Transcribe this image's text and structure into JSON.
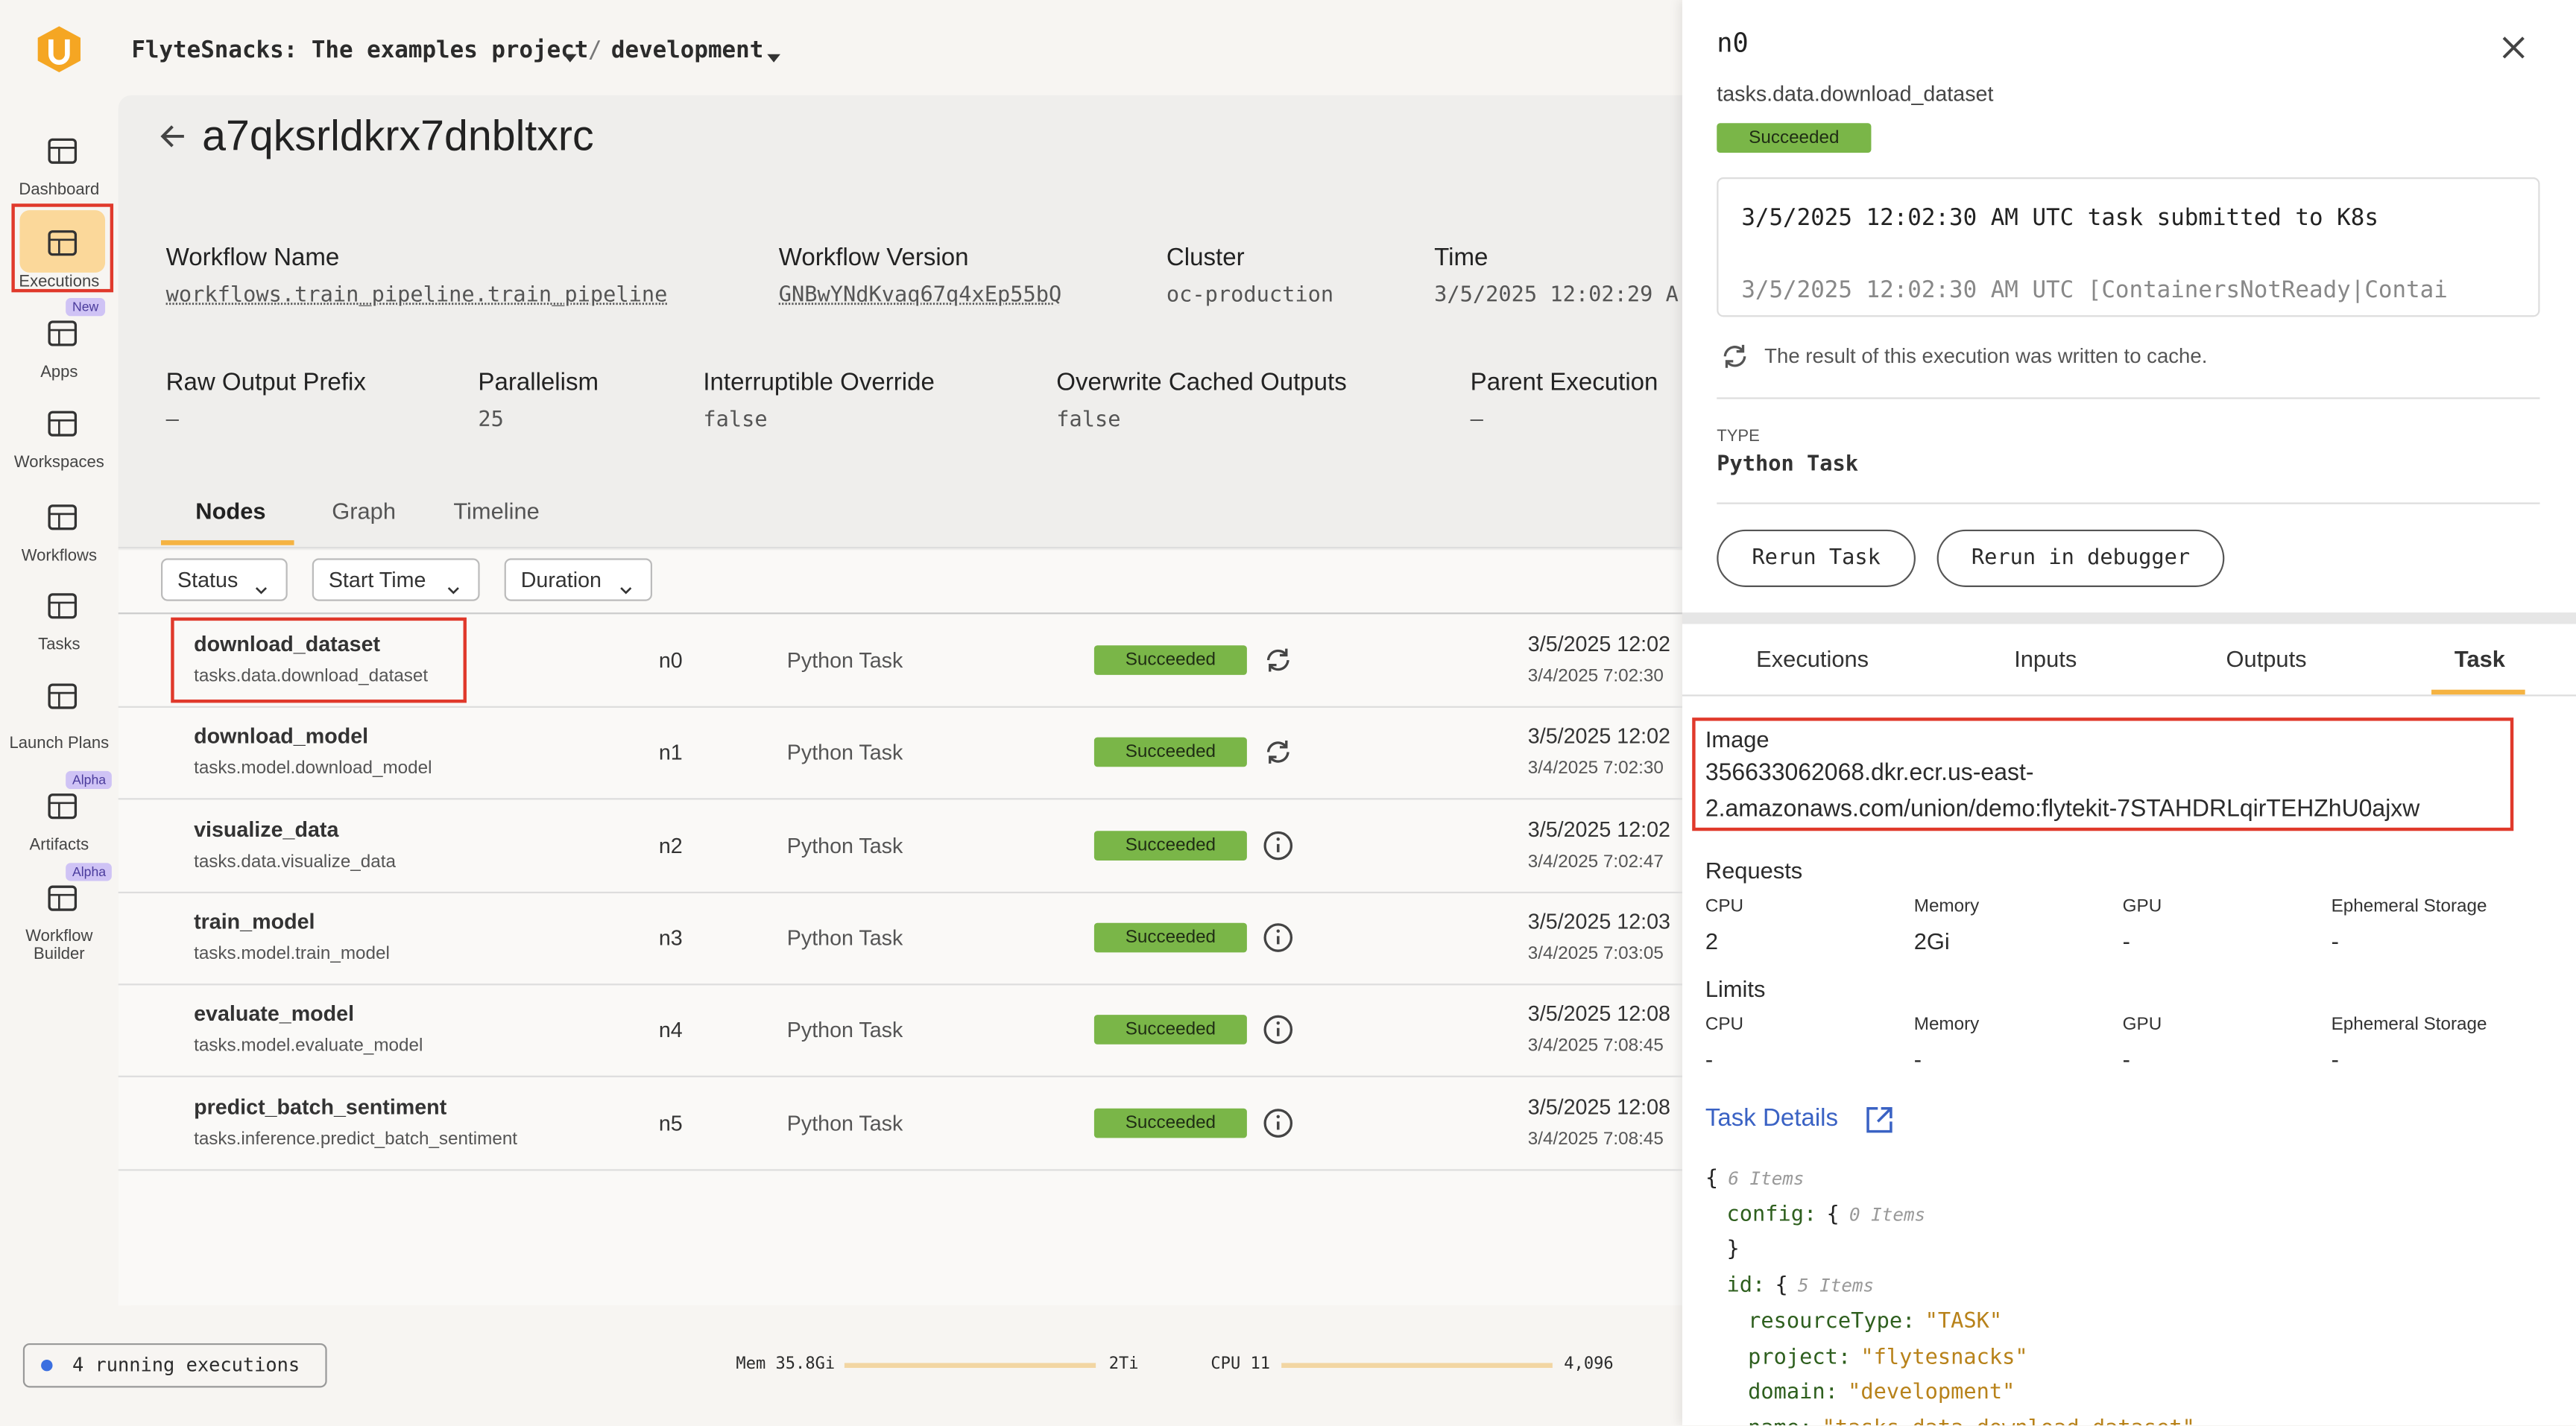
{
  "header": {
    "project": "FlyteSnacks: The examples project",
    "separator": "/",
    "domain": "development"
  },
  "sidebar": [
    {
      "label": "Dashboard"
    },
    {
      "label": "Executions"
    },
    {
      "label": "Apps",
      "badge": "New"
    },
    {
      "label": "Workspaces"
    },
    {
      "label": "Workflows"
    },
    {
      "label": "Tasks"
    },
    {
      "label": "Launch Plans"
    },
    {
      "label": "Artifacts",
      "badge": "Alpha"
    },
    {
      "label": "Workflow Builder",
      "badge": "Alpha"
    }
  ],
  "execution": {
    "id": "a7qksrldkrx7dnbltxrc",
    "fields": [
      {
        "label": "Workflow Name",
        "value": "workflows.train_pipeline.train_pipeline"
      },
      {
        "label": "Workflow Version",
        "value": "GNBwYNdKvaq67q4xEp55bQ"
      },
      {
        "label": "Cluster",
        "value": "oc-production"
      },
      {
        "label": "Time",
        "value": "3/5/2025 12:02:29 A"
      },
      {
        "label": "Raw Output Prefix",
        "value": "–"
      },
      {
        "label": "Parallelism",
        "value": "25"
      },
      {
        "label": "Interruptible Override",
        "value": "false"
      },
      {
        "label": "Overwrite Cached Outputs",
        "value": "false"
      },
      {
        "label": "Parent Execution",
        "value": "–"
      }
    ]
  },
  "tabs": [
    "Nodes",
    "Graph",
    "Timeline"
  ],
  "filters": [
    "Status",
    "Start Time",
    "Duration"
  ],
  "nodes": [
    {
      "name": "download_dataset",
      "task": "tasks.data.download_dataset",
      "id": "n0",
      "type": "Python Task",
      "status": "Succeeded",
      "start": "3/5/2025 12:02",
      "local": "3/4/2025 7:02:30"
    },
    {
      "name": "download_model",
      "task": "tasks.model.download_model",
      "id": "n1",
      "type": "Python Task",
      "status": "Succeeded",
      "start": "3/5/2025 12:02",
      "local": "3/4/2025 7:02:30"
    },
    {
      "name": "visualize_data",
      "task": "tasks.data.visualize_data",
      "id": "n2",
      "type": "Python Task",
      "status": "Succeeded",
      "start": "3/5/2025 12:02",
      "local": "3/4/2025 7:02:47"
    },
    {
      "name": "train_model",
      "task": "tasks.model.train_model",
      "id": "n3",
      "type": "Python Task",
      "status": "Succeeded",
      "start": "3/5/2025 12:03",
      "local": "3/4/2025 7:03:05"
    },
    {
      "name": "evaluate_model",
      "task": "tasks.model.evaluate_model",
      "id": "n4",
      "type": "Python Task",
      "status": "Succeeded",
      "start": "3/5/2025 12:08",
      "local": "3/4/2025 7:08:45"
    },
    {
      "name": "predict_batch_sentiment",
      "task": "tasks.inference.predict_batch_sentiment",
      "id": "n5",
      "type": "Python Task",
      "status": "Succeeded",
      "start": "3/5/2025 12:08",
      "local": "3/4/2025 7:08:45"
    }
  ],
  "footer": {
    "running": "4 running executions",
    "mem": "Mem 35.8Gi",
    "mem_max": "2Ti",
    "cpu": "CPU 11",
    "cpu_max": "4,096"
  },
  "panel": {
    "title": "n0",
    "subtitle": "tasks.data.download_dataset",
    "status": "Succeeded",
    "logs": [
      "3/5/2025 12:02:30 AM UTC task submitted to K8s",
      "3/5/2025 12:02:30 AM UTC [ContainersNotReady|Contai"
    ],
    "cache_note": "The result of this execution was written to cache.",
    "type_label": "TYPE",
    "type_value": "Python Task",
    "buttons": [
      "Rerun Task",
      "Rerun in debugger"
    ],
    "tabs": [
      "Executions",
      "Inputs",
      "Outputs",
      "Task"
    ],
    "image_label": "Image",
    "image_value": [
      "356633062068.dkr.ecr.us-east-",
      "2.amazonaws.com/union/demo:flytekit-7STAHDRLqirTEHZhU0ajxw"
    ],
    "requests": {
      "title": "Requests",
      "items": [
        {
          "label": "CPU",
          "value": "2"
        },
        {
          "label": "Memory",
          "value": "2Gi"
        },
        {
          "label": "GPU",
          "value": "-"
        },
        {
          "label": "Ephemeral Storage",
          "value": "-"
        }
      ]
    },
    "limits": {
      "title": "Limits",
      "items": [
        {
          "label": "CPU",
          "value": "-"
        },
        {
          "label": "Memory",
          "value": "-"
        },
        {
          "label": "GPU",
          "value": "-"
        },
        {
          "label": "Ephemeral Storage",
          "value": "-"
        }
      ]
    },
    "task_details": "Task Details",
    "json": [
      {
        "text": "{",
        "hint": "6 Items"
      },
      {
        "key": "config:",
        "text": "{",
        "hint": "0 Items"
      },
      {
        "text": "}"
      },
      {
        "key": "id:",
        "text": "{",
        "hint": "5 Items"
      },
      {
        "key": "resourceType:",
        "value": "\"TASK\""
      },
      {
        "key": "project:",
        "value": "\"flytesnacks\""
      },
      {
        "key": "domain:",
        "value": "\"development\""
      },
      {
        "key": "name:",
        "value": "\"tasks.data.download_dataset\""
      }
    ]
  }
}
